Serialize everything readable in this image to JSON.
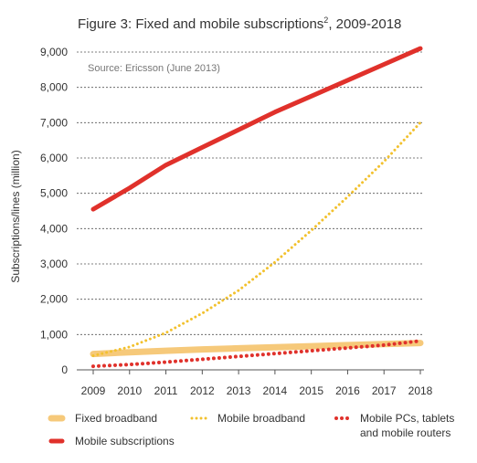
{
  "chart_data": {
    "type": "line",
    "title": "Figure 3: Fixed and mobile subscriptions",
    "title_superscript": "2",
    "title_suffix": ", 2009-2018",
    "subtitle": "Source: Ericsson (June 2013)",
    "xlabel": "",
    "ylabel": "Subscriptions/lines (million)",
    "x": [
      2009,
      2010,
      2011,
      2012,
      2013,
      2014,
      2015,
      2016,
      2017,
      2018
    ],
    "ylim": [
      0,
      9000
    ],
    "yticks": [
      0,
      1000,
      2000,
      3000,
      4000,
      5000,
      6000,
      7000,
      8000,
      9000
    ],
    "ytick_labels": [
      "0",
      "1,000",
      "2,000",
      "3,000",
      "4,000",
      "5,000",
      "6,000",
      "7,000",
      "8,000",
      "9,000"
    ],
    "grid": "horizontal dashed",
    "legend_position": "bottom",
    "series": [
      {
        "name": "Fixed broadband",
        "color": "#F6C97A",
        "style": "thick",
        "values": [
          450,
          500,
          540,
          580,
          610,
          640,
          670,
          700,
          730,
          760
        ]
      },
      {
        "name": "Mobile broadband",
        "color": "#F2C12E",
        "style": "dotted",
        "values": [
          400,
          650,
          1050,
          1600,
          2250,
          3050,
          3950,
          4900,
          5900,
          7000
        ]
      },
      {
        "name": "Mobile PCs, tablets and mobile routers",
        "label_lines": [
          "Mobile PCs, tablets",
          "and mobile routers"
        ],
        "color": "#E0312B",
        "style": "dotted",
        "values": [
          100,
          150,
          220,
          300,
          380,
          460,
          540,
          620,
          700,
          820
        ]
      },
      {
        "name": "Mobile subscriptions",
        "color": "#E0312B",
        "style": "solid",
        "values": [
          4550,
          5150,
          5800,
          6300,
          6800,
          7300,
          7750,
          8200,
          8650,
          9100
        ]
      }
    ]
  }
}
